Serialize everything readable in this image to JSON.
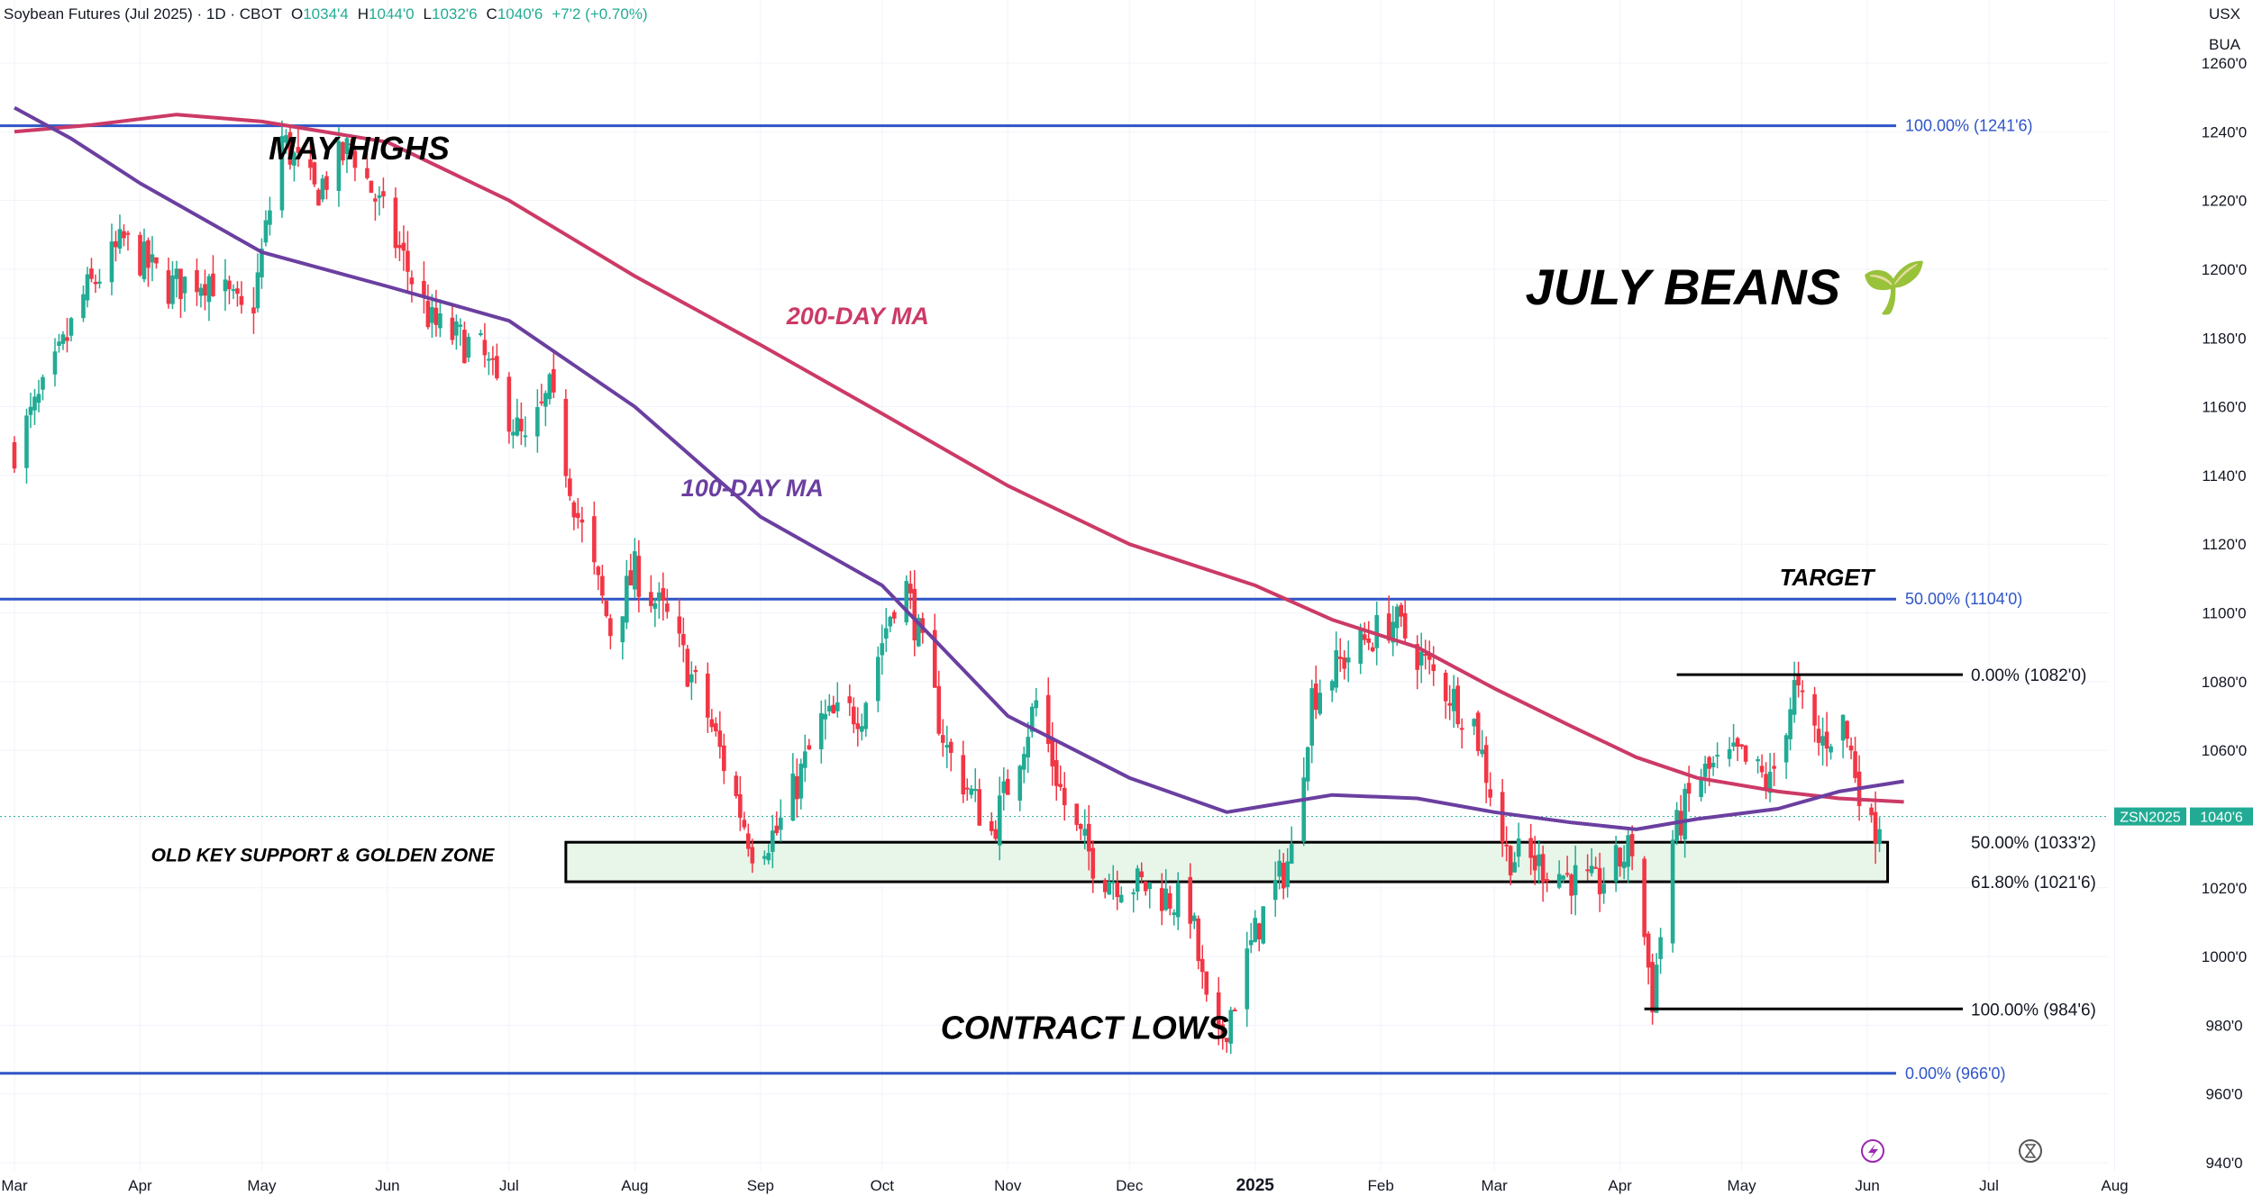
{
  "header": {
    "symbol_title": "Soybean Futures (Jul 2025) · 1D · CBOT",
    "open_label": "O",
    "open_value": "1034'4",
    "high_label": "H",
    "high_value": "1044'0",
    "low_label": "L",
    "low_value": "1032'6",
    "close_label": "C",
    "close_value": "1040'6",
    "change": "+7'2 (+0.70%)"
  },
  "currency_label": "USX",
  "unit_label": "BUA",
  "colors": {
    "up_candle": "#22ab94",
    "down_candle": "#f23645",
    "ma200": "#cc3a66",
    "ma100": "#6b3fa0",
    "fib_line": "#2f55c7",
    "zone_fill": "#e8f5e9",
    "price_tag": "#22ab94"
  },
  "chart_data": {
    "type": "candlestick",
    "title": "JULY BEANS 🌱",
    "y_axis": {
      "ticks": [
        "940'0",
        "960'0",
        "980'0",
        "1000'0",
        "1020'0",
        "1040'0",
        "1060'0",
        "1080'0",
        "1100'0",
        "1120'0",
        "1140'0",
        "1160'0",
        "1180'0",
        "1200'0",
        "1220'0",
        "1240'0",
        "1260'0"
      ],
      "tick_values": [
        940,
        960,
        980,
        1000,
        1020,
        1040,
        1060,
        1080,
        1100,
        1120,
        1140,
        1160,
        1180,
        1200,
        1220,
        1240,
        1260
      ],
      "range": [
        940,
        1260
      ]
    },
    "x_axis": {
      "ticks": [
        "Mar",
        "Apr",
        "May",
        "Jun",
        "Jul",
        "Aug",
        "Sep",
        "Oct",
        "Nov",
        "Dec",
        "2025",
        "Feb",
        "Mar",
        "Apr",
        "May",
        "Jun",
        "Jul",
        "Aug"
      ],
      "bold_tick": "2025",
      "range": [
        "2024-03-01",
        "2025-08-20"
      ]
    },
    "last_price": {
      "symbol": "ZSN2025",
      "value": "1040'6",
      "numeric": 1040.75
    },
    "horizontal_levels": [
      {
        "label": "100.00% (1241'6)",
        "value": 1241.75
      },
      {
        "label": "50.00% (1104'0)",
        "value": 1104
      },
      {
        "label": "0.00% (966'0)",
        "value": 966
      }
    ],
    "retracement_levels": [
      {
        "label": "0.00% (1082'0)",
        "value": 1082
      },
      {
        "label": "50.00% (1033'2)",
        "value": 1033.25
      },
      {
        "label": "61.80% (1021'6)",
        "value": 1021.75
      },
      {
        "label": "100.00% (984'6)",
        "value": 984.75
      }
    ],
    "zone": {
      "label": "OLD KEY SUPPORT & GOLDEN ZONE",
      "from_date": "2024-07-15",
      "to_date": "2025-06-06",
      "top": 1033.25,
      "bottom": 1021.75
    },
    "annotations": [
      {
        "text": "MAY HIGHS",
        "date": "2024-05-25",
        "value": 1232
      },
      {
        "text": "200-DAY MA",
        "date": "2024-09-25",
        "value": 1184
      },
      {
        "text": "100-DAY MA",
        "date": "2024-08-30",
        "value": 1134
      },
      {
        "text": "TARGET",
        "date": "2025-05-22",
        "value": 1108
      },
      {
        "text": "CONTRACT LOWS",
        "date": "2024-11-20",
        "value": 976
      }
    ],
    "ma_200": {
      "name": "200-DAY MA",
      "points": [
        [
          "2024-03-01",
          1240
        ],
        [
          "2024-03-20",
          1242
        ],
        [
          "2024-04-10",
          1245
        ],
        [
          "2024-05-01",
          1243
        ],
        [
          "2024-06-01",
          1237
        ],
        [
          "2024-07-01",
          1220
        ],
        [
          "2024-08-01",
          1198
        ],
        [
          "2024-09-01",
          1178
        ],
        [
          "2024-10-01",
          1158
        ],
        [
          "2024-11-01",
          1137
        ],
        [
          "2024-12-01",
          1120
        ],
        [
          "2025-01-01",
          1108
        ],
        [
          "2025-01-20",
          1098
        ],
        [
          "2025-02-10",
          1090
        ],
        [
          "2025-03-01",
          1078
        ],
        [
          "2025-03-20",
          1067
        ],
        [
          "2025-04-05",
          1058
        ],
        [
          "2025-04-20",
          1052
        ],
        [
          "2025-05-10",
          1048
        ],
        [
          "2025-05-25",
          1046
        ],
        [
          "2025-06-10",
          1045
        ]
      ]
    },
    "ma_100": {
      "name": "100-DAY MA",
      "points": [
        [
          "2024-03-01",
          1247
        ],
        [
          "2024-03-15",
          1238
        ],
        [
          "2024-04-01",
          1225
        ],
        [
          "2024-05-01",
          1205
        ],
        [
          "2024-06-01",
          1195
        ],
        [
          "2024-07-01",
          1185
        ],
        [
          "2024-08-01",
          1160
        ],
        [
          "2024-09-01",
          1128
        ],
        [
          "2024-10-01",
          1108
        ],
        [
          "2024-11-01",
          1070
        ],
        [
          "2024-12-01",
          1052
        ],
        [
          "2024-12-25",
          1042
        ],
        [
          "2025-01-20",
          1047
        ],
        [
          "2025-02-10",
          1046
        ],
        [
          "2025-03-01",
          1042
        ],
        [
          "2025-03-20",
          1039
        ],
        [
          "2025-04-05",
          1037
        ],
        [
          "2025-04-20",
          1040
        ],
        [
          "2025-05-10",
          1043
        ],
        [
          "2025-05-25",
          1048
        ],
        [
          "2025-06-10",
          1051
        ]
      ]
    },
    "price_path": [
      [
        "2024-03-01",
        1148
      ],
      [
        "2024-03-10",
        1168
      ],
      [
        "2024-03-18",
        1192
      ],
      [
        "2024-03-28",
        1208
      ],
      [
        "2024-04-08",
        1195
      ],
      [
        "2024-04-18",
        1198
      ],
      [
        "2024-04-28",
        1184
      ],
      [
        "2024-05-06",
        1238
      ],
      [
        "2024-05-14",
        1222
      ],
      [
        "2024-05-23",
        1236
      ],
      [
        "2024-06-03",
        1208
      ],
      [
        "2024-06-12",
        1184
      ],
      [
        "2024-06-24",
        1176
      ],
      [
        "2024-07-05",
        1148
      ],
      [
        "2024-07-11",
        1164
      ],
      [
        "2024-07-18",
        1128
      ],
      [
        "2024-07-26",
        1095
      ],
      [
        "2024-08-01",
        1112
      ],
      [
        "2024-08-09",
        1098
      ],
      [
        "2024-08-19",
        1070
      ],
      [
        "2024-08-30",
        1032
      ],
      [
        "2024-09-05",
        1036
      ],
      [
        "2024-09-16",
        1068
      ],
      [
        "2024-09-26",
        1072
      ],
      [
        "2024-10-06",
        1112
      ],
      [
        "2024-10-17",
        1060
      ],
      [
        "2024-10-28",
        1036
      ],
      [
        "2024-11-04",
        1060
      ],
      [
        "2024-11-08",
        1074
      ],
      [
        "2024-11-16",
        1040
      ],
      [
        "2024-11-24",
        1024
      ],
      [
        "2024-12-06",
        1020
      ],
      [
        "2024-12-16",
        1014
      ],
      [
        "2024-12-22",
        970
      ],
      [
        "2025-01-02",
        1010
      ],
      [
        "2025-01-10",
        1030
      ],
      [
        "2025-01-15",
        1076
      ],
      [
        "2025-01-24",
        1088
      ],
      [
        "2025-02-04",
        1098
      ],
      [
        "2025-02-14",
        1082
      ],
      [
        "2025-02-24",
        1068
      ],
      [
        "2025-03-04",
        1030
      ],
      [
        "2025-03-14",
        1026
      ],
      [
        "2025-03-26",
        1020
      ],
      [
        "2025-04-04",
        1032
      ],
      [
        "2025-04-09",
        988
      ],
      [
        "2025-04-14",
        1034
      ],
      [
        "2025-04-20",
        1052
      ],
      [
        "2025-04-30",
        1058
      ],
      [
        "2025-05-08",
        1050
      ],
      [
        "2025-05-14",
        1078
      ],
      [
        "2025-05-20",
        1062
      ],
      [
        "2025-05-26",
        1068
      ],
      [
        "2025-06-02",
        1036
      ],
      [
        "2025-06-04",
        1040.75
      ]
    ]
  }
}
